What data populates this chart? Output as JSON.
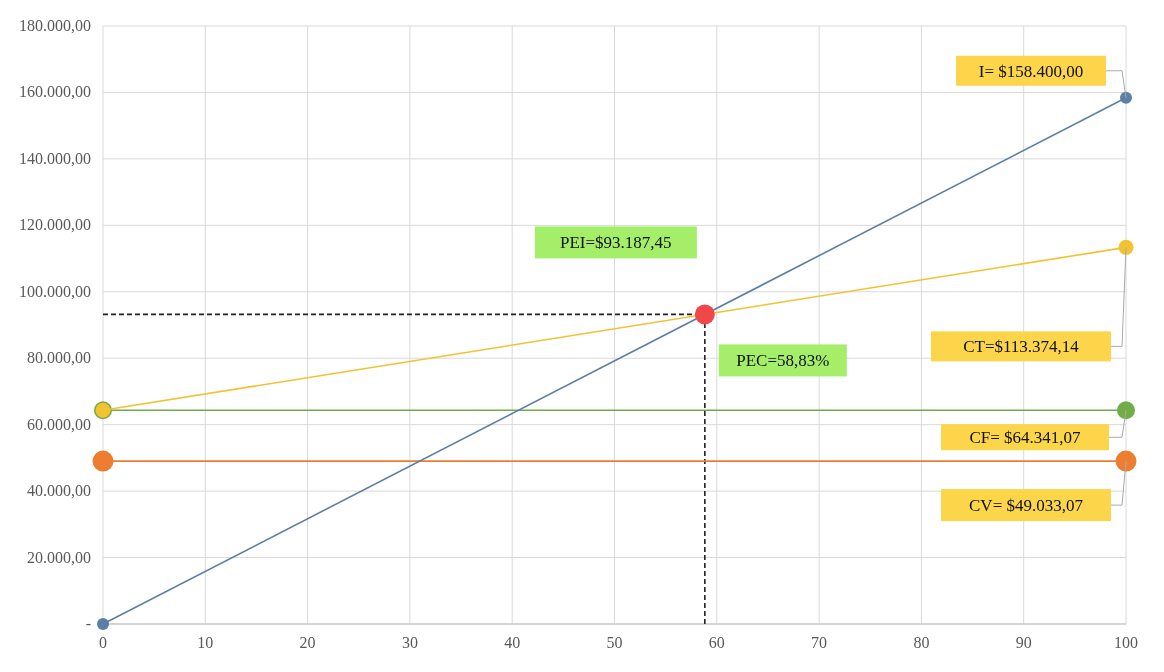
{
  "chart_data": {
    "type": "line",
    "x": [
      0,
      100
    ],
    "xlim": [
      0,
      100
    ],
    "xticks": [
      0,
      10,
      20,
      30,
      40,
      50,
      60,
      70,
      80,
      90,
      100
    ],
    "ylim": [
      0,
      180000
    ],
    "yticks": [
      {
        "value": 0,
        "label": "-"
      },
      {
        "value": 20000,
        "label": "20.000,00"
      },
      {
        "value": 40000,
        "label": "40.000,00"
      },
      {
        "value": 60000,
        "label": "60.000,00"
      },
      {
        "value": 80000,
        "label": "80.000,00"
      },
      {
        "value": 100000,
        "label": "100.000,00"
      },
      {
        "value": 120000,
        "label": "120.000,00"
      },
      {
        "value": 140000,
        "label": "140.000,00"
      },
      {
        "value": 160000,
        "label": "160.000,00"
      },
      {
        "value": 180000,
        "label": "180.000,00"
      }
    ],
    "grid": true,
    "marker": "circle",
    "line_style": "solid",
    "series": [
      {
        "color": "#5b7fa6",
        "values": [
          0,
          158400
        ]
      },
      {
        "color": "#f2c230",
        "values": [
          64341.07,
          113374.14
        ]
      },
      {
        "color": "#70ad47",
        "values": [
          64341.07,
          64341.07
        ]
      },
      {
        "color": "#ed7d31",
        "values": [
          49033.07,
          49033.07
        ]
      },
      {
        "type": "scatter",
        "color": "#f04848",
        "x": [
          58.83
        ],
        "values": [
          93187.45
        ]
      }
    ],
    "ref_lines": [
      {
        "axis": "x",
        "value": 58.83,
        "line_style": "dashed",
        "color": "#222222"
      },
      {
        "axis": "y",
        "value": 93187.45,
        "line_style": "dashed",
        "color": "#222222"
      }
    ],
    "annotations": [
      "I= $158.400,00",
      "CT=$113.374,14",
      "CF= $64.341,07",
      "CV= $49.033,07",
      "PEI=$93.187,45",
      "PEC=58,83%"
    ]
  }
}
